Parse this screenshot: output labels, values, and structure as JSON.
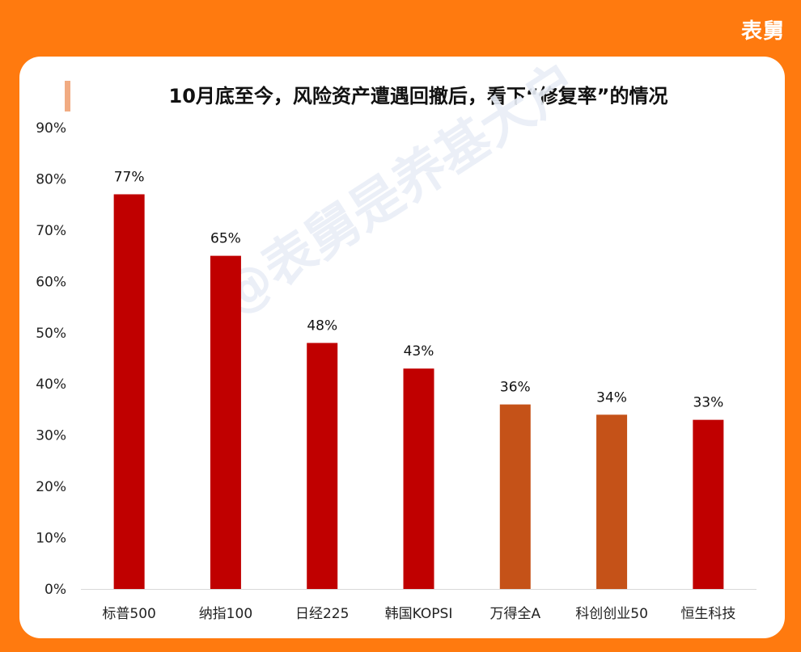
{
  "brand": "表舅",
  "title": "10月底至今，风险资产遭遇回撤后，看下“修复率”的情况",
  "watermark": "@表舅是养基大户",
  "colors": {
    "background": "#ff7a0f",
    "bar_red": "#c00000",
    "bar_orange": "#c55218",
    "accent": "#f1ab82"
  },
  "chart_data": {
    "type": "bar",
    "categories": [
      "标普500",
      "纳指100",
      "日经225",
      "韩国KOPSI",
      "万得全A",
      "科创创业50",
      "恒生科技"
    ],
    "values": [
      77,
      65,
      48,
      43,
      36,
      34,
      33
    ],
    "value_labels": [
      "77%",
      "65%",
      "48%",
      "43%",
      "36%",
      "34%",
      "33%"
    ],
    "bar_colors": [
      "#c00000",
      "#c00000",
      "#c00000",
      "#c00000",
      "#c55218",
      "#c55218",
      "#c00000"
    ],
    "yticks": [
      "0%",
      "10%",
      "20%",
      "30%",
      "40%",
      "50%",
      "60%",
      "70%",
      "80%",
      "90%"
    ],
    "ylim": [
      0,
      90
    ],
    "grid": false
  }
}
